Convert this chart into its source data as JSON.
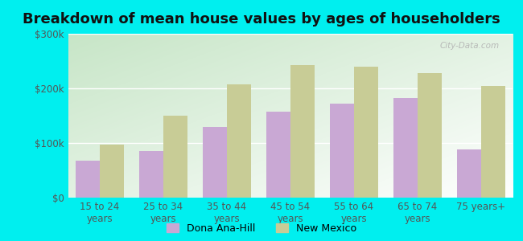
{
  "title": "Breakdown of mean house values by ages of householders",
  "categories": [
    "15 to 24\nyears",
    "25 to 34\nyears",
    "35 to 44\nyears",
    "45 to 54\nyears",
    "55 to 64\nyears",
    "65 to 74\nyears",
    "75 years+"
  ],
  "dona_ana_values": [
    68000,
    85000,
    130000,
    158000,
    172000,
    182000,
    88000
  ],
  "new_mexico_values": [
    97000,
    150000,
    208000,
    242000,
    240000,
    228000,
    205000
  ],
  "dona_ana_color": "#c9a8d4",
  "new_mexico_color": "#c8cc96",
  "outer_bg": "#00efef",
  "ylim": [
    0,
    300000
  ],
  "yticks": [
    0,
    100000,
    200000,
    300000
  ],
  "ytick_labels": [
    "$0",
    "$100k",
    "$200k",
    "$300k"
  ],
  "legend_labels": [
    "Dona Ana-Hill",
    "New Mexico"
  ],
  "watermark": "City-Data.com",
  "bar_width": 0.38,
  "title_fontsize": 13,
  "label_fontsize": 9,
  "tick_fontsize": 8.5,
  "grad_top_left": "#c8ddb8",
  "grad_bottom_right": "#eef8ee"
}
